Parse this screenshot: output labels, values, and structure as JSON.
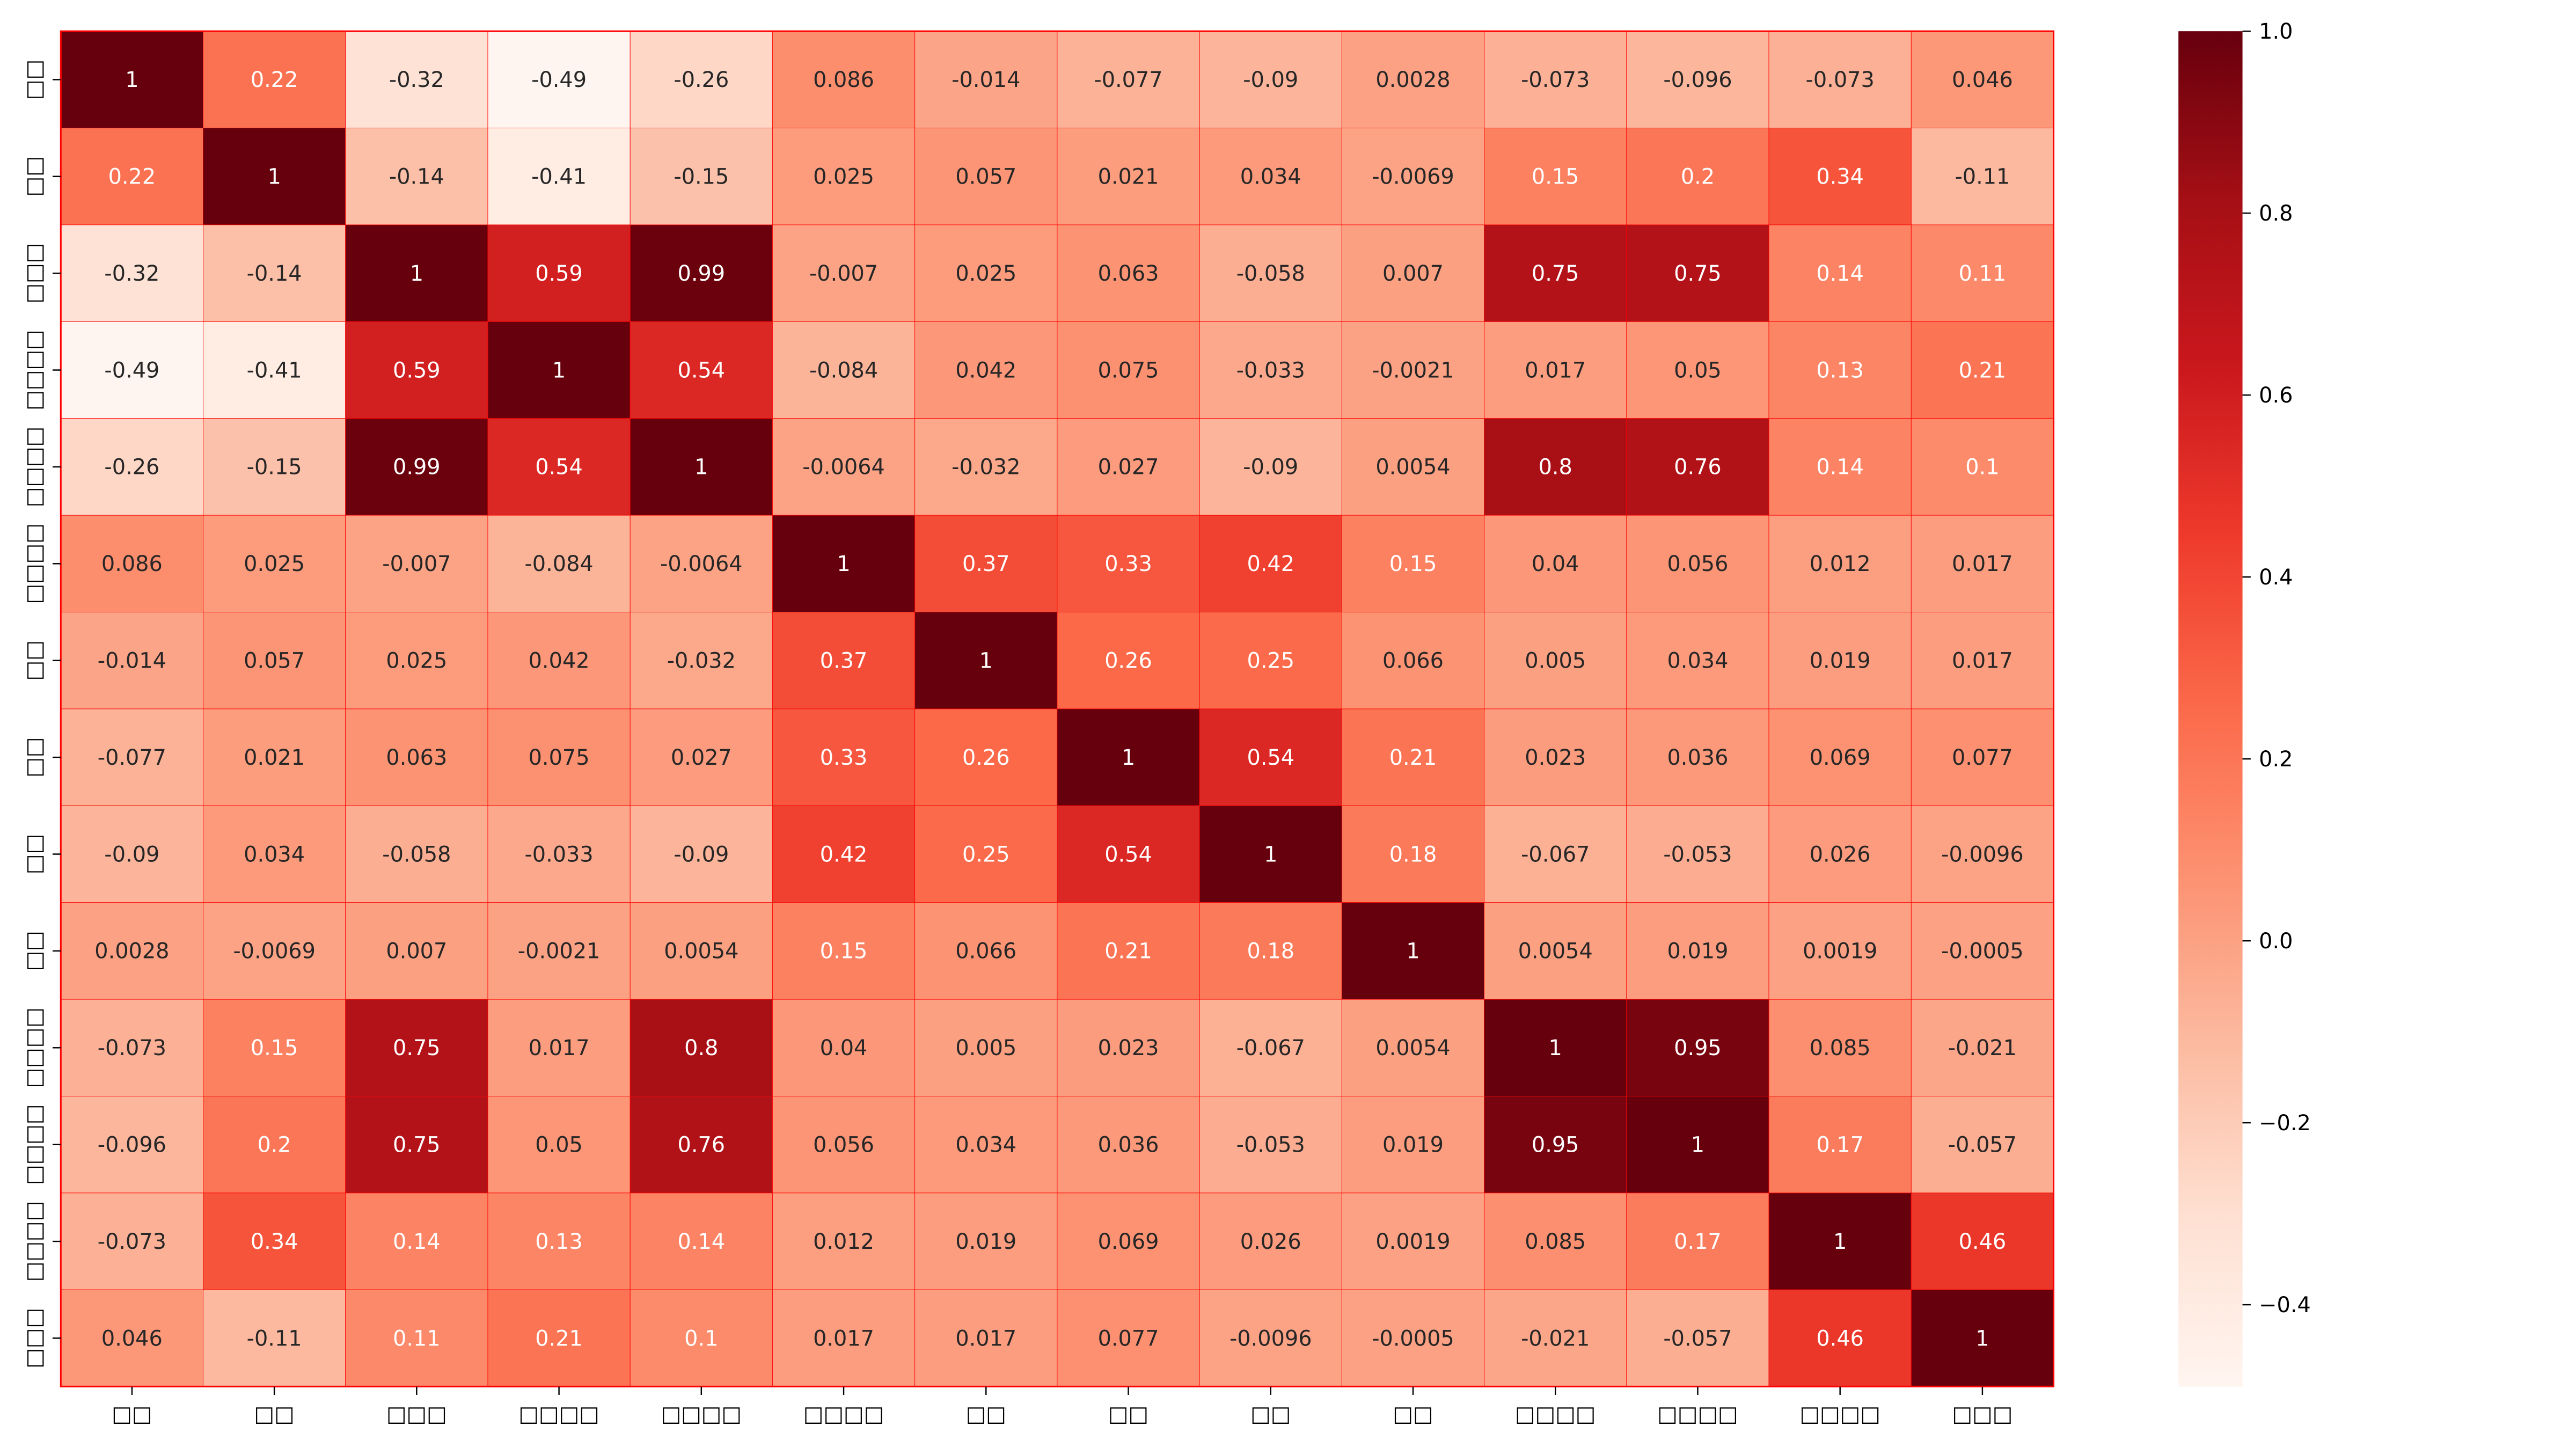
{
  "chart_data": {
    "type": "heatmap",
    "title": "",
    "xlabel": "",
    "ylabel": "",
    "colormap": "Reds",
    "colormap_stops": [
      "#fff5f0",
      "#fee0d2",
      "#fcbba1",
      "#fc9272",
      "#fb6a4a",
      "#ef3b2c",
      "#cb181d",
      "#a50f15",
      "#67000d"
    ],
    "grid_line_color": "#ff0000",
    "vmin": -0.49,
    "vmax": 1.0,
    "colorbar": {
      "ticks": [
        1.0,
        0.8,
        0.6,
        0.4,
        0.2,
        0.0,
        -0.2,
        -0.4
      ],
      "tick_labels": [
        "1.0",
        "0.8",
        "0.6",
        "0.4",
        "0.2",
        "0.0",
        "−0.2",
        "−0.4"
      ]
    },
    "x_labels": [
      "□□",
      "□□",
      "□□□",
      "□□□□",
      "□□□□",
      "□□□□",
      "□□",
      "□□",
      "□□",
      "□□",
      "□□□□",
      "□□□□",
      "□□□□",
      "□□□"
    ],
    "y_labels": [
      "□□",
      "□□",
      "□□□",
      "□□□□",
      "□□□□",
      "□□□□",
      "□□",
      "□□",
      "□□",
      "□□",
      "□□□□",
      "□□□□",
      "□□□□",
      "□□□"
    ],
    "values": [
      [
        1,
        0.22,
        -0.32,
        -0.49,
        -0.26,
        0.086,
        -0.014,
        -0.077,
        -0.09,
        0.0028,
        -0.073,
        -0.096,
        -0.073,
        0.046
      ],
      [
        0.22,
        1,
        -0.14,
        -0.41,
        -0.15,
        0.025,
        0.057,
        0.021,
        0.034,
        -0.0069,
        0.15,
        0.2,
        0.34,
        -0.11
      ],
      [
        -0.32,
        -0.14,
        1,
        0.59,
        0.99,
        -0.007,
        0.025,
        0.063,
        -0.058,
        0.007,
        0.75,
        0.75,
        0.14,
        0.11
      ],
      [
        -0.49,
        -0.41,
        0.59,
        1,
        0.54,
        -0.084,
        0.042,
        0.075,
        -0.033,
        -0.0021,
        0.017,
        0.05,
        0.13,
        0.21
      ],
      [
        -0.26,
        -0.15,
        0.99,
        0.54,
        1,
        -0.0064,
        -0.032,
        0.027,
        -0.09,
        0.0054,
        0.8,
        0.76,
        0.14,
        0.1
      ],
      [
        0.086,
        0.025,
        -0.007,
        -0.084,
        -0.0064,
        1,
        0.37,
        0.33,
        0.42,
        0.15,
        0.04,
        0.056,
        0.012,
        0.017
      ],
      [
        -0.014,
        0.057,
        0.025,
        0.042,
        -0.032,
        0.37,
        1,
        0.26,
        0.25,
        0.066,
        0.005,
        0.034,
        0.019,
        0.017
      ],
      [
        -0.077,
        0.021,
        0.063,
        0.075,
        0.027,
        0.33,
        0.26,
        1,
        0.54,
        0.21,
        0.023,
        0.036,
        0.069,
        0.077
      ],
      [
        -0.09,
        0.034,
        -0.058,
        -0.033,
        -0.09,
        0.42,
        0.25,
        0.54,
        1,
        0.18,
        -0.067,
        -0.053,
        0.026,
        -0.0096
      ],
      [
        0.0028,
        -0.0069,
        0.007,
        -0.0021,
        0.0054,
        0.15,
        0.066,
        0.21,
        0.18,
        1,
        0.0054,
        0.019,
        0.0019,
        -0.0005
      ],
      [
        -0.073,
        0.15,
        0.75,
        0.017,
        0.8,
        0.04,
        0.005,
        0.023,
        -0.067,
        0.0054,
        1,
        0.95,
        0.085,
        -0.021
      ],
      [
        -0.096,
        0.2,
        0.75,
        0.05,
        0.76,
        0.056,
        0.034,
        0.036,
        -0.053,
        0.019,
        0.95,
        1,
        0.17,
        -0.057
      ],
      [
        -0.073,
        0.34,
        0.14,
        0.13,
        0.14,
        0.012,
        0.019,
        0.069,
        0.026,
        0.0019,
        0.085,
        0.17,
        1,
        0.46
      ],
      [
        0.046,
        -0.11,
        0.11,
        0.21,
        0.1,
        0.017,
        0.017,
        0.077,
        -0.0096,
        -0.0005,
        -0.021,
        -0.057,
        0.46,
        1
      ]
    ]
  }
}
